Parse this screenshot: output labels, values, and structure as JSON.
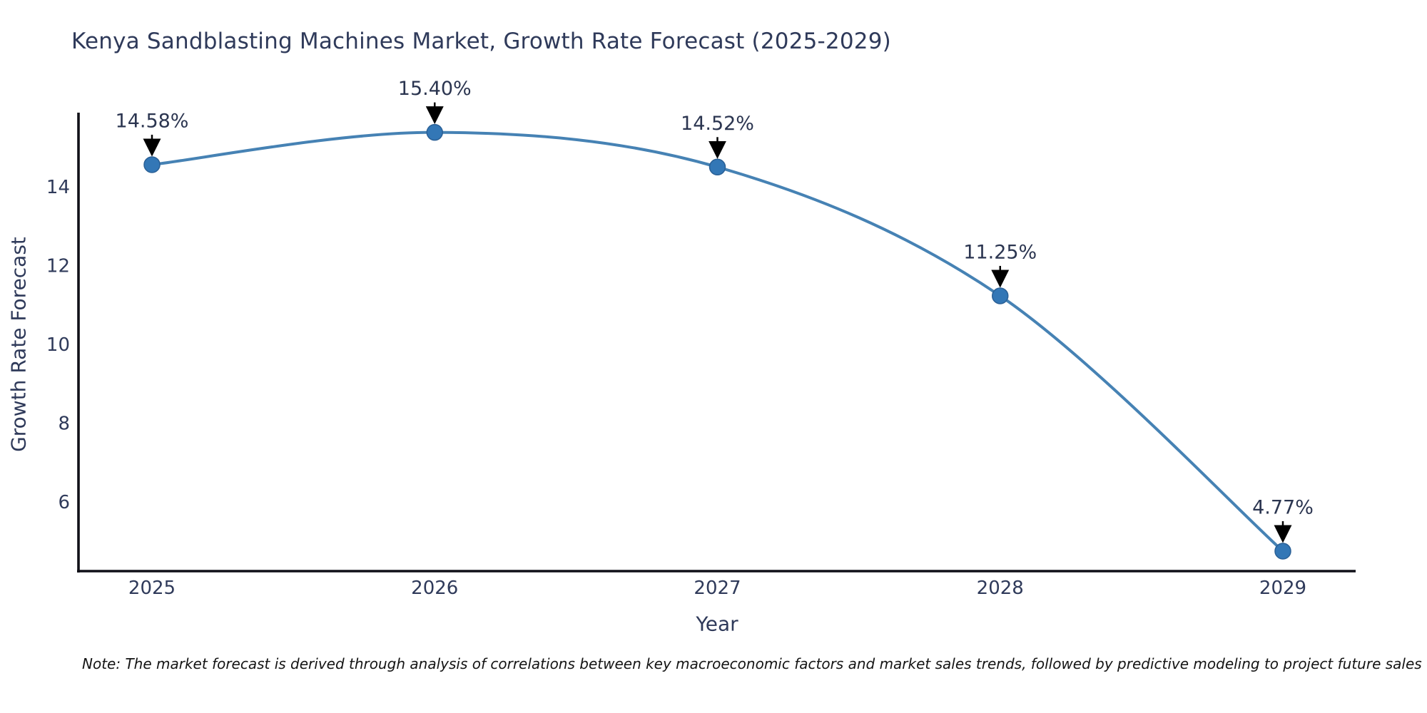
{
  "title": "Kenya Sandblasting Machines Market, Growth Rate Forecast (2025-2029)",
  "note": "Note: The market forecast is derived through analysis of correlations between key macroeconomic factors and market sales trends, followed by predictive modeling to project future sales",
  "chart_data": {
    "type": "line",
    "title": "Kenya Sandblasting Machines Market, Growth Rate Forecast (2025-2029)",
    "x": [
      2025,
      2026,
      2027,
      2028,
      2029
    ],
    "categories": [
      "2025",
      "2026",
      "2027",
      "2028",
      "2029"
    ],
    "values": [
      14.58,
      15.4,
      14.52,
      11.25,
      4.77
    ],
    "point_labels": [
      "14.58%",
      "15.40%",
      "14.52%",
      "11.25%",
      "4.77%"
    ],
    "xlabel": "Year",
    "ylabel": "Growth Rate Forecast",
    "yticks": [
      6,
      8,
      10,
      12,
      14
    ],
    "ylim": [
      4.25,
      15.9
    ],
    "xlim": [
      2024.74,
      2029.26
    ],
    "grid": false,
    "legend": "none",
    "marker": "circle",
    "line_smooth": true,
    "annotation_arrows": "down-to-point"
  },
  "colors": {
    "line": "#4682b4",
    "marker_fill": "#3377b6",
    "marker_edge": "#2a6096",
    "axis": "#101018",
    "text": "#2f3a5a",
    "annotation_text": "#2b3550",
    "arrow": "#000000",
    "note_text": "#141414",
    "background": "#ffffff"
  }
}
